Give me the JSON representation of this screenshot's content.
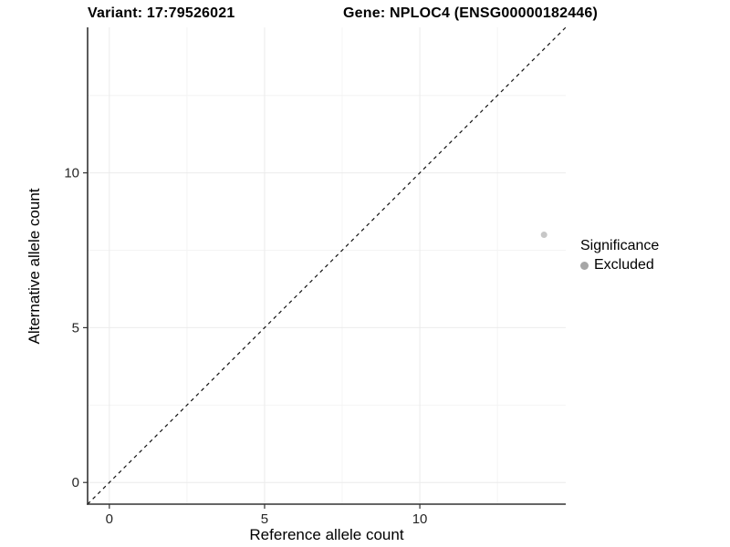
{
  "titles": {
    "variant": "Variant: 17:79526021",
    "gene": "Gene: NPLOC4 (ENSG00000182446)"
  },
  "chart_data": {
    "type": "scatter",
    "title_left": "Variant: 17:79526021",
    "title_right": "Gene: NPLOC4 (ENSG00000182446)",
    "xlabel": "Reference allele count",
    "ylabel": "Alternative allele count",
    "xlim": [
      -0.7,
      14.7
    ],
    "ylim": [
      -0.7,
      14.7
    ],
    "x_ticks": [
      0,
      5,
      10
    ],
    "y_ticks": [
      0,
      5,
      10
    ],
    "x_minor_ticks": [
      2.5,
      7.5,
      12.5
    ],
    "y_minor_ticks": [
      2.5,
      7.5,
      12.5
    ],
    "grid": true,
    "legend_position": "right",
    "reference_line": {
      "kind": "identity",
      "slope": 1,
      "intercept": 0,
      "style": "dashed",
      "color": "#111111"
    },
    "series": [
      {
        "name": "Excluded",
        "point_color": "#c7c7c7",
        "points": [
          {
            "x": 14,
            "y": 8
          }
        ]
      }
    ],
    "legend": {
      "title": "Significance",
      "entries": [
        {
          "label": "Excluded",
          "color": "#a6a6a6"
        }
      ]
    },
    "colors": {
      "axis": "#333333",
      "tick_label": "#262626",
      "grid_major": "#ebebeb",
      "grid_minor": "#f4f4f4"
    }
  }
}
